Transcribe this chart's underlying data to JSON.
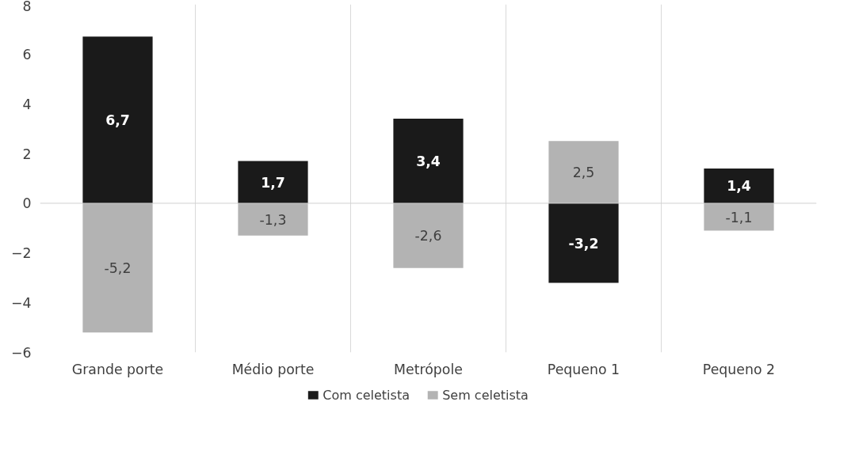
{
  "chart_data": {
    "type": "bar",
    "stacked": true,
    "categories": [
      "Grande porte",
      "Médio porte",
      "Metrópole",
      "Pequeno 1",
      "Pequeno 2"
    ],
    "series": [
      {
        "name": "Com celetista",
        "color": "#1a1a1a",
        "values": [
          6.7,
          1.7,
          3.4,
          -3.2,
          1.4
        ],
        "value_labels": [
          "6,7",
          "1,7",
          "3,4",
          "-3,2",
          "1,4"
        ]
      },
      {
        "name": "Sem celetista",
        "color": "#b3b3b3",
        "values": [
          -5.2,
          -1.3,
          -2.6,
          2.5,
          -1.1
        ],
        "value_labels": [
          "-5,2",
          "-1,3",
          "-2,6",
          "2,5",
          "-1,1"
        ]
      }
    ],
    "ylim": [
      -6,
      8
    ],
    "yticks": [
      -6,
      -4,
      -2,
      0,
      2,
      4,
      6,
      8
    ],
    "grid": "x",
    "legend": "bottom"
  }
}
